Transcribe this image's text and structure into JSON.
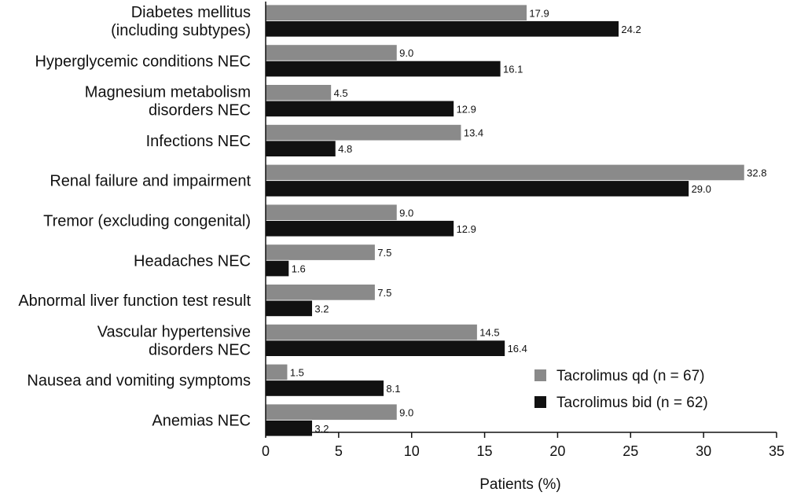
{
  "chart_data": {
    "type": "bar",
    "orientation": "horizontal",
    "categories": [
      [
        "Diabetes mellitus",
        "(including subtypes)"
      ],
      [
        "Hyperglycemic conditions NEC"
      ],
      [
        "Magnesium metabolism",
        "disorders NEC"
      ],
      [
        "Infections NEC"
      ],
      [
        "Renal failure and impairment"
      ],
      [
        "Tremor (excluding congenital)"
      ],
      [
        "Headaches NEC"
      ],
      [
        "Abnormal liver function test result"
      ],
      [
        "Vascular hypertensive",
        "disorders NEC"
      ],
      [
        "Nausea and vomiting symptoms"
      ],
      [
        "Anemias NEC"
      ]
    ],
    "series": [
      {
        "name": "Tacrolimus qd (n = 67)",
        "color": "#8a8a8a",
        "values": [
          17.9,
          9.0,
          4.5,
          13.4,
          32.8,
          9.0,
          7.5,
          7.5,
          14.5,
          1.5,
          9.0
        ],
        "labels": [
          "17.9",
          "9.0",
          "4.5",
          "13.4",
          "32.8",
          "9.0",
          "7.5",
          "7.5",
          "14.5",
          "1.5",
          "9.0"
        ]
      },
      {
        "name": "Tacrolimus bid (n = 62)",
        "color": "#111111",
        "values": [
          24.2,
          16.1,
          12.9,
          4.8,
          29.0,
          12.9,
          1.6,
          3.2,
          16.4,
          8.1,
          3.2
        ],
        "labels": [
          "24.2",
          "16.1",
          "12.9",
          "4.8",
          "29.0",
          "12.9",
          "1.6",
          "3.2",
          "16.4",
          "8.1",
          "3.2"
        ]
      }
    ],
    "xlabel": "Patients (%)",
    "xlim": [
      0,
      35
    ],
    "xticks": [
      0,
      5,
      10,
      15,
      20,
      25,
      30,
      35
    ],
    "grid": false,
    "legend_position": "bottom-right"
  }
}
